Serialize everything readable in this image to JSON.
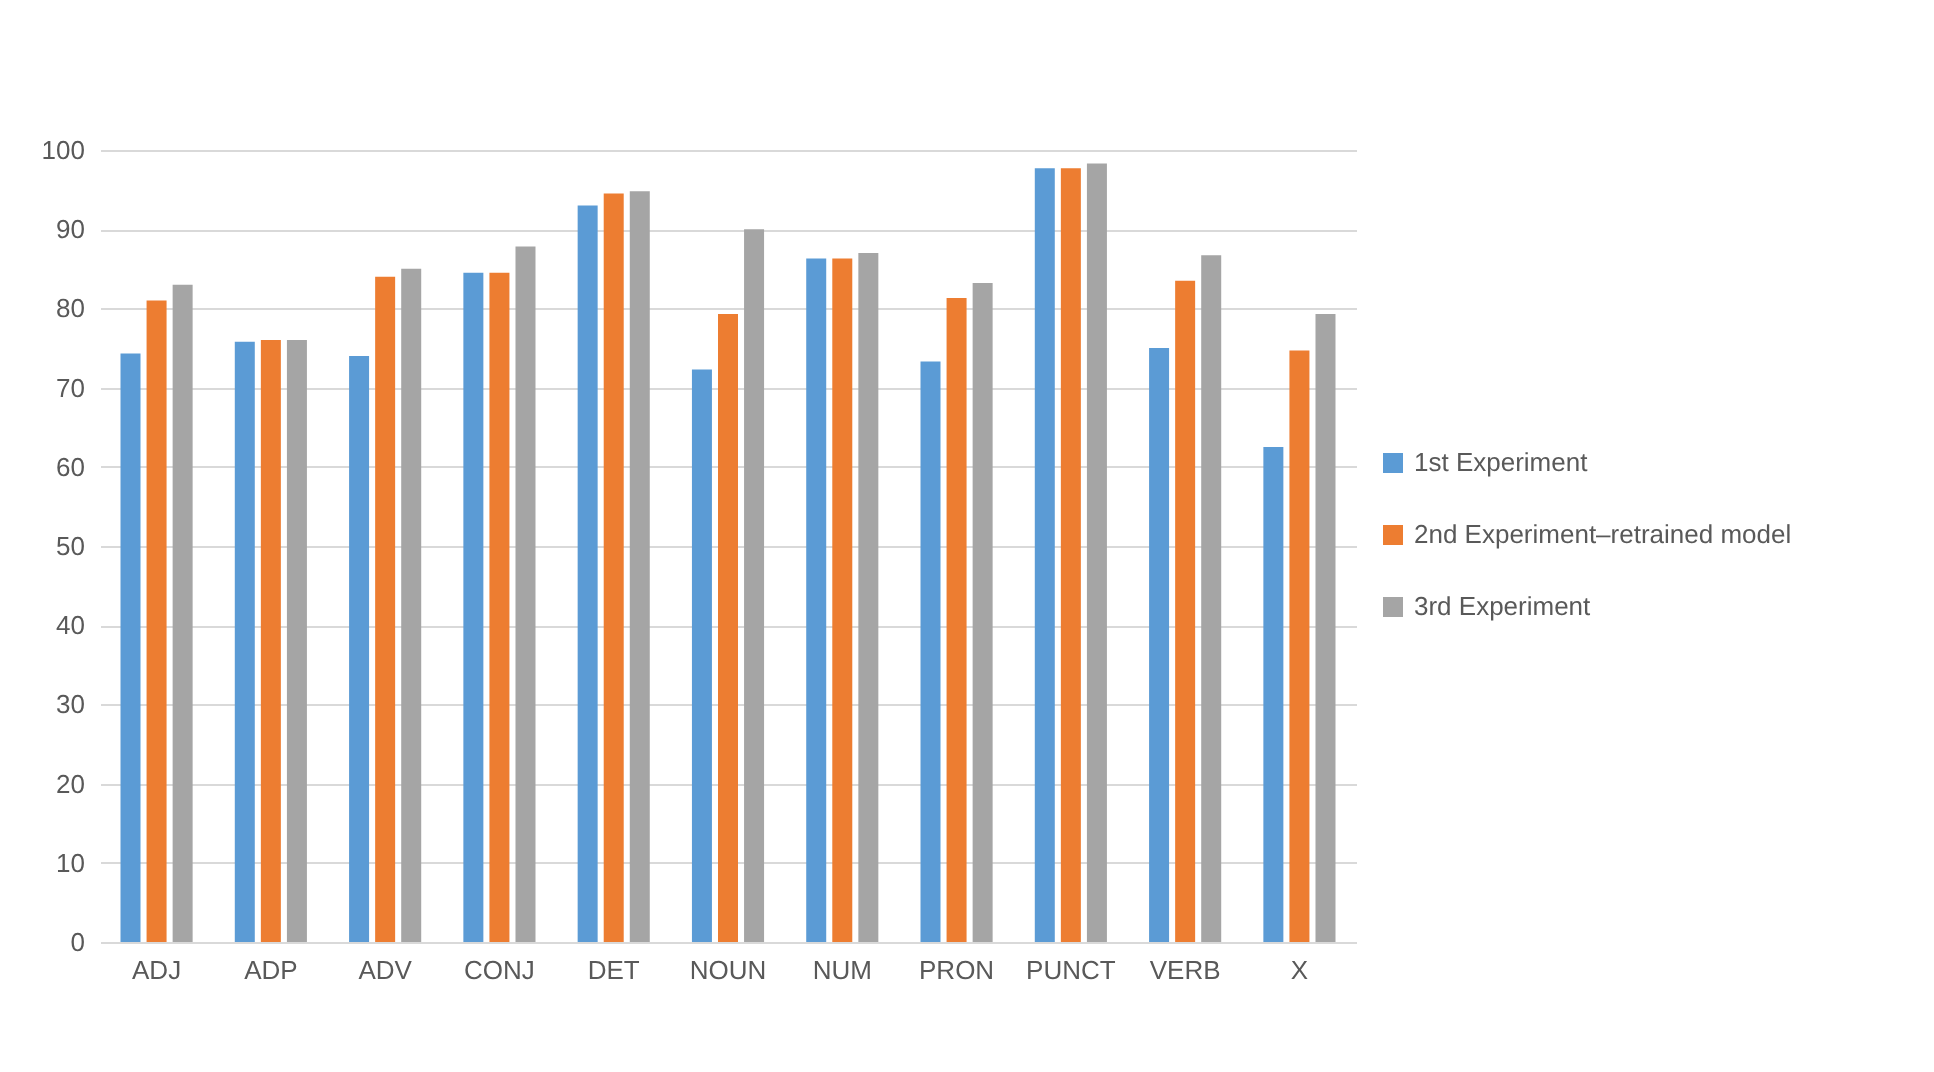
{
  "chart_data": {
    "type": "bar",
    "categories": [
      "ADJ",
      "ADP",
      "ADV",
      "CONJ",
      "DET",
      "NOUN",
      "NUM",
      "PRON",
      "PUNCT",
      "VERB",
      "X"
    ],
    "series": [
      {
        "name": "1st Experiment",
        "color": "#5b9bd5",
        "values": [
          74.3,
          75.8,
          74,
          84.5,
          93,
          72.3,
          86.3,
          73.3,
          97.7,
          75,
          62.5
        ]
      },
      {
        "name": "2nd Experiment–retrained model",
        "color": "#ed7d31",
        "values": [
          81,
          76,
          84,
          84.5,
          94.5,
          79.3,
          86.3,
          81.3,
          97.7,
          83.5,
          74.7
        ]
      },
      {
        "name": "3rd Experiment",
        "color": "#a5a5a5",
        "values": [
          83,
          76,
          85,
          87.8,
          94.8,
          90,
          87,
          83.2,
          98.3,
          86.7,
          79.3
        ]
      }
    ],
    "ylim": [
      0,
      100
    ],
    "yticks": [
      0,
      10,
      20,
      30,
      40,
      50,
      60,
      70,
      80,
      90,
      100
    ],
    "grid": "y",
    "legend": "right"
  }
}
